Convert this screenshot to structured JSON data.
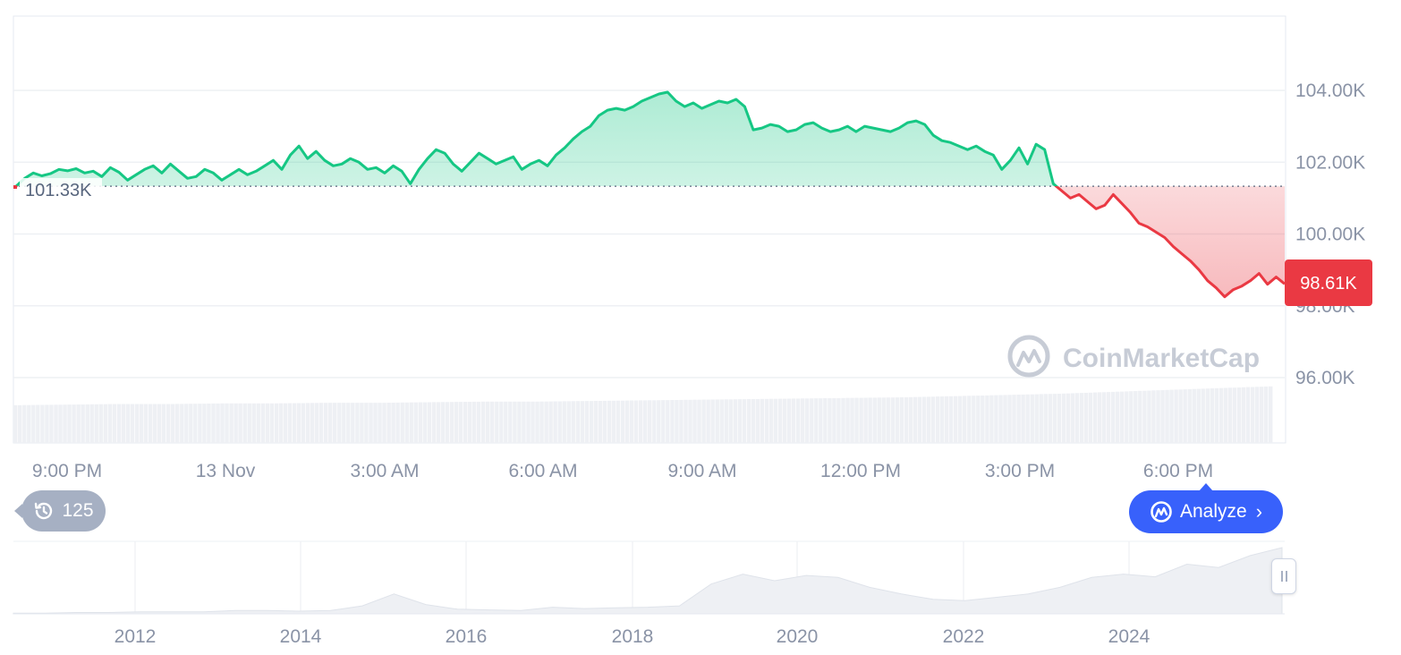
{
  "chart_data": [
    {
      "type": "line",
      "title": "",
      "xlabel": "",
      "ylabel": "",
      "x_tick_labels": [
        "9:00 PM",
        "13 Nov",
        "3:00 AM",
        "6:00 AM",
        "9:00 AM",
        "12:00 PM",
        "3:00 PM",
        "6:00 PM"
      ],
      "y_tick_labels": [
        "104.00K",
        "102.00K",
        "100.00K",
        "98.00K",
        "96.00K"
      ],
      "y_ticks": [
        104000,
        102000,
        100000,
        98000,
        96000
      ],
      "ylim": [
        94000,
        106000
      ],
      "reference_price": 101330,
      "reference_label": "101.33K",
      "current_price_label": "98.61K",
      "current_price": 98610,
      "grid": true,
      "series": [
        {
          "values": [
            101330,
            101550,
            101700,
            101620,
            101680,
            101800,
            101760,
            101820,
            101700,
            101750,
            101600,
            101850,
            101720,
            101500,
            101650,
            101800,
            101900,
            101700,
            101950,
            101750,
            101550,
            101600,
            101800,
            101700,
            101500,
            101650,
            101800,
            101650,
            101750,
            101900,
            102050,
            101800,
            102200,
            102450,
            102100,
            102300,
            102050,
            101900,
            101950,
            102100,
            102000,
            101800,
            101850,
            101700,
            101900,
            101750,
            101400,
            101800,
            102100,
            102350,
            102250,
            101950,
            101750,
            102000,
            102250,
            102100,
            101950,
            102050,
            102150,
            101800,
            101950,
            102050,
            101900,
            102200,
            102400,
            102650,
            102850,
            103000,
            103300,
            103450,
            103500,
            103450,
            103550,
            103700,
            103800,
            103900,
            103950,
            103700,
            103550,
            103650,
            103500,
            103600,
            103700,
            103650,
            103750,
            103550,
            102900,
            102950,
            103050,
            103000,
            102850,
            102900,
            103050,
            103100,
            102950,
            102850,
            102900,
            103000,
            102850,
            103000,
            102950,
            102900,
            102850,
            102950,
            103100,
            103150,
            103050,
            102750,
            102600,
            102550,
            102450,
            102350,
            102450,
            102300,
            102200,
            101800,
            102050,
            102400,
            101950,
            102500,
            102350,
            101400,
            101200,
            101000,
            101100,
            100900,
            100700,
            100800,
            101100,
            100850,
            100600,
            100300,
            100200,
            100050,
            99900,
            99650,
            99450,
            99250,
            99000,
            98700,
            98500,
            98250,
            98450,
            98550,
            98700,
            98900,
            98600,
            98800,
            98610
          ],
          "colors": {
            "above": "#16c784",
            "below": "#ea3943"
          }
        }
      ],
      "volume": {
        "values": [
          0.62,
          0.63,
          0.64,
          0.64,
          0.65,
          0.65,
          0.66,
          0.66,
          0.67,
          0.68,
          0.68,
          0.69,
          0.7,
          0.71,
          0.72,
          0.73,
          0.74,
          0.75,
          0.77,
          0.79,
          0.81,
          0.84,
          0.87,
          0.9,
          0.93
        ]
      }
    },
    {
      "type": "area",
      "title": "",
      "x_tick_labels": [
        "2012",
        "2014",
        "2016",
        "2018",
        "2020",
        "2022",
        "2024"
      ],
      "values": [
        0.01,
        0.01,
        0.02,
        0.02,
        0.03,
        0.03,
        0.03,
        0.05,
        0.05,
        0.04,
        0.05,
        0.12,
        0.3,
        0.14,
        0.07,
        0.06,
        0.05,
        0.1,
        0.08,
        0.09,
        0.1,
        0.12,
        0.45,
        0.6,
        0.5,
        0.58,
        0.55,
        0.4,
        0.3,
        0.22,
        0.2,
        0.25,
        0.3,
        0.4,
        0.55,
        0.6,
        0.56,
        0.75,
        0.7,
        0.88,
        1.0
      ]
    }
  ],
  "watermark": "CoinMarketCap",
  "history_badge": {
    "count": "125",
    "icon": "history-icon"
  },
  "analyze_button": {
    "label": "Analyze",
    "icon": "coinmarketcap-logo-icon"
  },
  "colors": {
    "up": "#16c784",
    "down": "#ea3943",
    "accent": "#3861fb"
  }
}
